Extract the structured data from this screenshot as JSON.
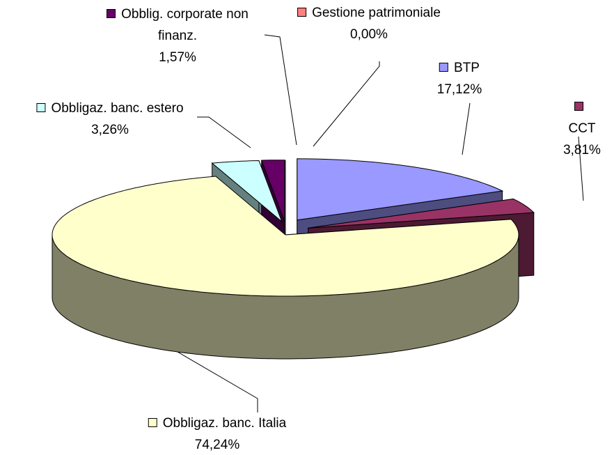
{
  "chart_data": {
    "type": "pie3d",
    "categories": [
      "BTP",
      "CCT",
      "Obbligaz. banc. Italia",
      "Obbligaz. banc. estero",
      "Obblig. corporate non finanz.",
      "Gestione patrimoniale"
    ],
    "values": [
      17.12,
      3.81,
      74.24,
      3.26,
      1.57,
      0.0
    ],
    "value_labels": [
      "17,12%",
      "3,81%",
      "74,24%",
      "3,26%",
      "1,57%",
      "0,00%"
    ],
    "colors": [
      "#9999ff",
      "#993366",
      "#ffffcc",
      "#ccffff",
      "#660066",
      "#ff8080"
    ]
  }
}
